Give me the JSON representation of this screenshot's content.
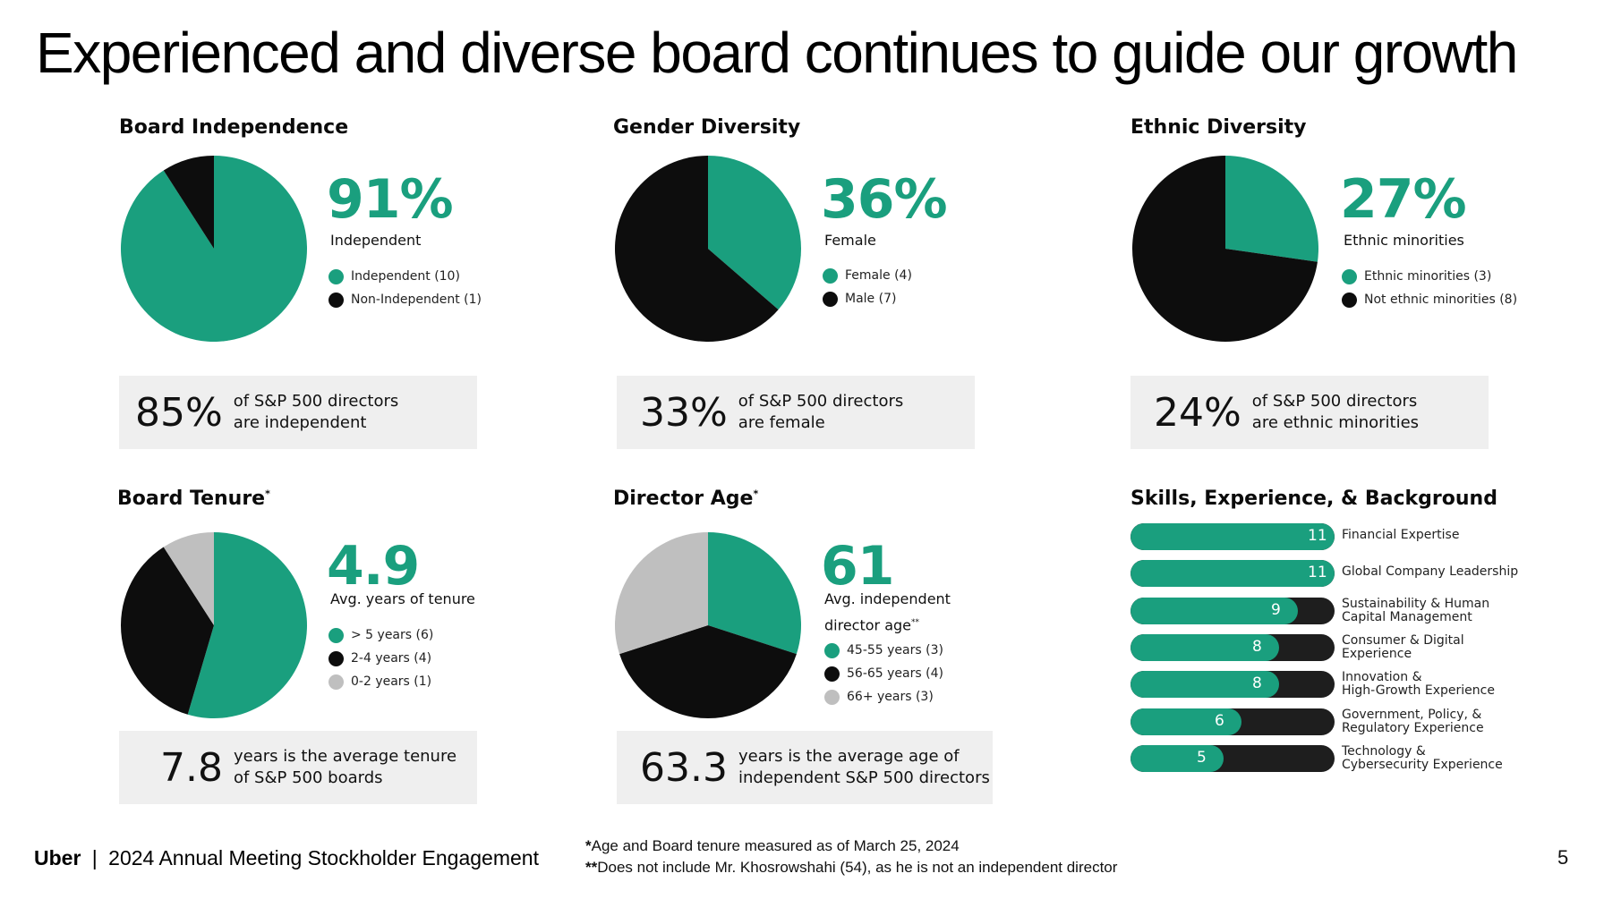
{
  "page": {
    "title": "Experienced and diverse board continues to guide our growth",
    "page_number": "5"
  },
  "colors": {
    "green": "#1a9f7e",
    "black": "#0d0d0d",
    "gray": "#bfbfbf",
    "bench_bg": "#efefef",
    "bar_track": "#1e1e1e"
  },
  "panels": [
    {
      "title": "Board Independence",
      "title_mark": "",
      "stat": "91%",
      "stat_label": "Independent",
      "stat_label2": "",
      "stat_label_mark": "",
      "legend": [
        {
          "label": "Independent (10)",
          "color": "green"
        },
        {
          "label": "Non-Independent (1)",
          "color": "black"
        }
      ],
      "bench_value": "85%",
      "bench_line1": "of S&P 500 directors",
      "bench_line2": "are independent"
    },
    {
      "title": "Gender Diversity",
      "title_mark": "",
      "stat": "36%",
      "stat_label": "Female",
      "stat_label2": "",
      "stat_label_mark": "",
      "legend": [
        {
          "label": "Female (4)",
          "color": "green"
        },
        {
          "label": "Male (7)",
          "color": "black"
        }
      ],
      "bench_value": "33%",
      "bench_line1": "of S&P 500 directors",
      "bench_line2": "are female"
    },
    {
      "title": "Ethnic Diversity",
      "title_mark": "",
      "stat": "27%",
      "stat_label": "Ethnic minorities",
      "stat_label2": "",
      "stat_label_mark": "",
      "legend": [
        {
          "label": "Ethnic minorities (3)",
          "color": "green"
        },
        {
          "label": "Not ethnic minorities (8)",
          "color": "black"
        }
      ],
      "bench_value": "24%",
      "bench_line1": "of S&P 500 directors",
      "bench_line2": "are ethnic minorities"
    },
    {
      "title": "Board Tenure",
      "title_mark": "*",
      "stat": "4.9",
      "stat_label": "Avg. years of tenure",
      "stat_label2": "",
      "stat_label_mark": "",
      "legend": [
        {
          "label": "> 5 years (6)",
          "color": "green"
        },
        {
          "label": "2-4 years (4)",
          "color": "black"
        },
        {
          "label": "0-2 years (1)",
          "color": "gray"
        }
      ],
      "bench_value": "7.8",
      "bench_line1": "years is the average tenure",
      "bench_line2": "of S&P 500 boards"
    },
    {
      "title": "Director Age",
      "title_mark": "*",
      "stat": "61",
      "stat_label": "Avg. independent",
      "stat_label2": "director age",
      "stat_label_mark": "**",
      "legend": [
        {
          "label": "45-55 years (3)",
          "color": "green"
        },
        {
          "label": "56-65 years (4)",
          "color": "black"
        },
        {
          "label": "66+ years (3)",
          "color": "gray"
        }
      ],
      "bench_value": "63.3",
      "bench_line1": "years is the average age of",
      "bench_line2": "independent S&P 500 directors"
    }
  ],
  "chart_data": [
    {
      "type": "pie",
      "title": "Board Independence",
      "labels": [
        "Independent",
        "Non-Independent"
      ],
      "values": [
        10,
        1
      ],
      "colors": [
        "green",
        "black"
      ]
    },
    {
      "type": "pie",
      "title": "Gender Diversity",
      "labels": [
        "Female",
        "Male"
      ],
      "values": [
        4,
        7
      ],
      "colors": [
        "green",
        "black"
      ]
    },
    {
      "type": "pie",
      "title": "Ethnic Diversity",
      "labels": [
        "Ethnic minorities",
        "Not ethnic minorities"
      ],
      "values": [
        3,
        8
      ],
      "colors": [
        "green",
        "black"
      ]
    },
    {
      "type": "pie",
      "title": "Board Tenure",
      "labels": [
        "> 5 years",
        "2-4 years",
        "0-2 years"
      ],
      "values": [
        6,
        4,
        1
      ],
      "colors": [
        "green",
        "black",
        "gray"
      ]
    },
    {
      "type": "pie",
      "title": "Director Age",
      "labels": [
        "45-55 years",
        "56-65 years",
        "66+ years"
      ],
      "values": [
        3,
        4,
        3
      ],
      "colors": [
        "green",
        "black",
        "gray"
      ]
    },
    {
      "type": "bar",
      "orientation": "horizontal",
      "title": "Skills, Experience, & Background",
      "max": 11,
      "categories": [
        "Financial Expertise",
        "Global Company Leadership",
        "Sustainability & Human Capital Management",
        "Consumer & Digital Experience",
        "Innovation & High-Growth Experience",
        "Government, Policy, & Regulatory Experience",
        "Technology & Cybersecurity Experience"
      ],
      "values": [
        11,
        11,
        9,
        8,
        8,
        6,
        5
      ]
    }
  ],
  "skills": {
    "title": "Skills, Experience, & Background",
    "items": [
      {
        "line1": "Financial Expertise",
        "line2": ""
      },
      {
        "line1": "Global Company Leadership",
        "line2": ""
      },
      {
        "line1": "Sustainability & Human",
        "line2": "Capital Management"
      },
      {
        "line1": "Consumer & Digital",
        "line2": "Experience"
      },
      {
        "line1": "Innovation &",
        "line2": "High-Growth Experience"
      },
      {
        "line1": "Government, Policy, &",
        "line2": "Regulatory Experience"
      },
      {
        "line1": "Technology &",
        "line2": "Cybersecurity Experience"
      }
    ]
  },
  "footer": {
    "brand": "Uber",
    "separator": "|",
    "doc_title": "2024 Annual Meeting Stockholder Engagement",
    "note1_mark": "*",
    "note1": "Age and Board tenure measured as of March 25, 2024",
    "note2_mark": "**",
    "note2": "Does not include Mr. Khosrowshahi (54), as he is not an independent director"
  }
}
